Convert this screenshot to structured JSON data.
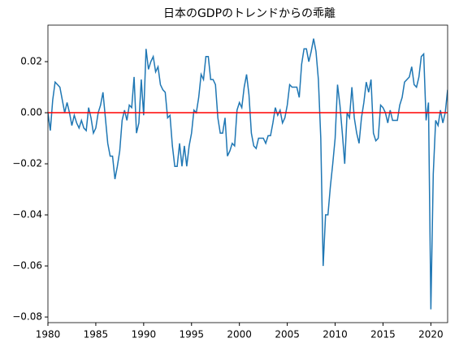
{
  "chart_data": {
    "type": "line",
    "title": "日本のGDPのトレンドからの乖離",
    "x": [
      1980,
      1980.25,
      1980.5,
      1980.75,
      1981,
      1981.25,
      1981.5,
      1981.75,
      1982,
      1982.25,
      1982.5,
      1982.75,
      1983,
      1983.25,
      1983.5,
      1983.75,
      1984,
      1984.25,
      1984.5,
      1984.75,
      1985,
      1985.25,
      1985.5,
      1985.75,
      1986,
      1986.25,
      1986.5,
      1986.75,
      1987,
      1987.25,
      1987.5,
      1987.75,
      1988,
      1988.25,
      1988.5,
      1988.75,
      1989,
      1989.25,
      1989.5,
      1989.75,
      1990,
      1990.25,
      1990.5,
      1990.75,
      1991,
      1991.25,
      1991.5,
      1991.75,
      1992,
      1992.25,
      1992.5,
      1992.75,
      1993,
      1993.25,
      1993.5,
      1993.75,
      1994,
      1994.25,
      1994.5,
      1994.75,
      1995,
      1995.25,
      1995.5,
      1995.75,
      1996,
      1996.25,
      1996.5,
      1996.75,
      1997,
      1997.25,
      1997.5,
      1997.75,
      1998,
      1998.25,
      1998.5,
      1998.75,
      1999,
      1999.25,
      1999.5,
      1999.75,
      2000,
      2000.25,
      2000.5,
      2000.75,
      2001,
      2001.25,
      2001.5,
      2001.75,
      2002,
      2002.25,
      2002.5,
      2002.75,
      2003,
      2003.25,
      2003.5,
      2003.75,
      2004,
      2004.25,
      2004.5,
      2004.75,
      2005,
      2005.25,
      2005.5,
      2005.75,
      2006,
      2006.25,
      2006.5,
      2006.75,
      2007,
      2007.25,
      2007.5,
      2007.75,
      2008,
      2008.25,
      2008.5,
      2008.75,
      2009,
      2009.25,
      2009.5,
      2009.75,
      2010,
      2010.25,
      2010.5,
      2010.75,
      2011,
      2011.25,
      2011.5,
      2011.75,
      2012,
      2012.25,
      2012.5,
      2012.75,
      2013,
      2013.25,
      2013.5,
      2013.75,
      2014,
      2014.25,
      2014.5,
      2014.75,
      2015,
      2015.25,
      2015.5,
      2015.75,
      2016,
      2016.25,
      2016.5,
      2016.75,
      2017,
      2017.25,
      2017.5,
      2017.75,
      2018,
      2018.25,
      2018.5,
      2018.75,
      2019,
      2019.25,
      2019.5,
      2019.75,
      2020,
      2020.25,
      2020.5,
      2020.75,
      2021,
      2021.25,
      2021.5,
      2021.75
    ],
    "series": [
      {
        "name": "GDP",
        "color": "#1f77b4",
        "values": [
          0.0,
          -0.007,
          0.005,
          0.012,
          0.011,
          0.01,
          0.005,
          0.0,
          0.004,
          0.0,
          -0.005,
          -0.001,
          -0.004,
          -0.006,
          -0.003,
          -0.006,
          -0.007,
          0.002,
          -0.002,
          -0.008,
          -0.006,
          0.0,
          0.003,
          0.008,
          -0.002,
          -0.012,
          -0.017,
          -0.017,
          -0.026,
          -0.021,
          -0.015,
          -0.003,
          0.001,
          -0.003,
          0.003,
          0.002,
          0.014,
          -0.008,
          -0.004,
          0.013,
          -0.001,
          0.025,
          0.017,
          0.02,
          0.022,
          0.016,
          0.018,
          0.011,
          0.009,
          0.008,
          -0.002,
          -0.001,
          -0.013,
          -0.021,
          -0.021,
          -0.012,
          -0.021,
          -0.013,
          -0.021,
          -0.013,
          -0.008,
          0.001,
          0.0,
          0.006,
          0.015,
          0.013,
          0.022,
          0.022,
          0.013,
          0.013,
          0.011,
          -0.002,
          -0.008,
          -0.008,
          -0.002,
          -0.017,
          -0.015,
          -0.012,
          -0.013,
          0.001,
          0.004,
          0.002,
          0.01,
          0.015,
          0.007,
          -0.008,
          -0.013,
          -0.014,
          -0.01,
          -0.01,
          -0.01,
          -0.012,
          -0.009,
          -0.009,
          -0.004,
          0.002,
          -0.001,
          0.001,
          -0.004,
          -0.002,
          0.003,
          0.011,
          0.01,
          0.01,
          0.01,
          0.006,
          0.019,
          0.025,
          0.025,
          0.02,
          0.024,
          0.029,
          0.024,
          0.013,
          -0.01,
          -0.06,
          -0.04,
          -0.04,
          -0.029,
          -0.02,
          -0.01,
          0.011,
          0.003,
          -0.008,
          -0.02,
          0.0,
          -0.002,
          0.01,
          -0.002,
          -0.008,
          -0.012,
          -0.002,
          0.004,
          0.012,
          0.008,
          0.013,
          -0.008,
          -0.011,
          -0.01,
          0.003,
          0.002,
          0.0,
          -0.004,
          0.001,
          -0.003,
          -0.003,
          -0.003,
          0.003,
          0.006,
          0.012,
          0.013,
          0.014,
          0.018,
          0.011,
          0.01,
          0.014,
          0.022,
          0.023,
          -0.003,
          0.004,
          -0.077,
          -0.024,
          -0.003,
          -0.005,
          0.001,
          -0.004,
          0.0,
          0.009
        ]
      }
    ],
    "reference_line": {
      "value": 0,
      "color": "#ff0000"
    },
    "xlim": [
      1980,
      2021.75
    ],
    "ylim": [
      -0.0822,
      0.0343
    ],
    "xticks": [
      1980,
      1985,
      1990,
      1995,
      2000,
      2005,
      2010,
      2015,
      2020
    ],
    "yticks": [
      {
        "value": -0.08,
        "label": "−0.08"
      },
      {
        "value": -0.06,
        "label": "−0.06"
      },
      {
        "value": -0.04,
        "label": "−0.04"
      },
      {
        "value": -0.02,
        "label": "−0.02"
      },
      {
        "value": 0,
        "label": "0.00"
      },
      0.02
    ],
    "grid": false
  }
}
